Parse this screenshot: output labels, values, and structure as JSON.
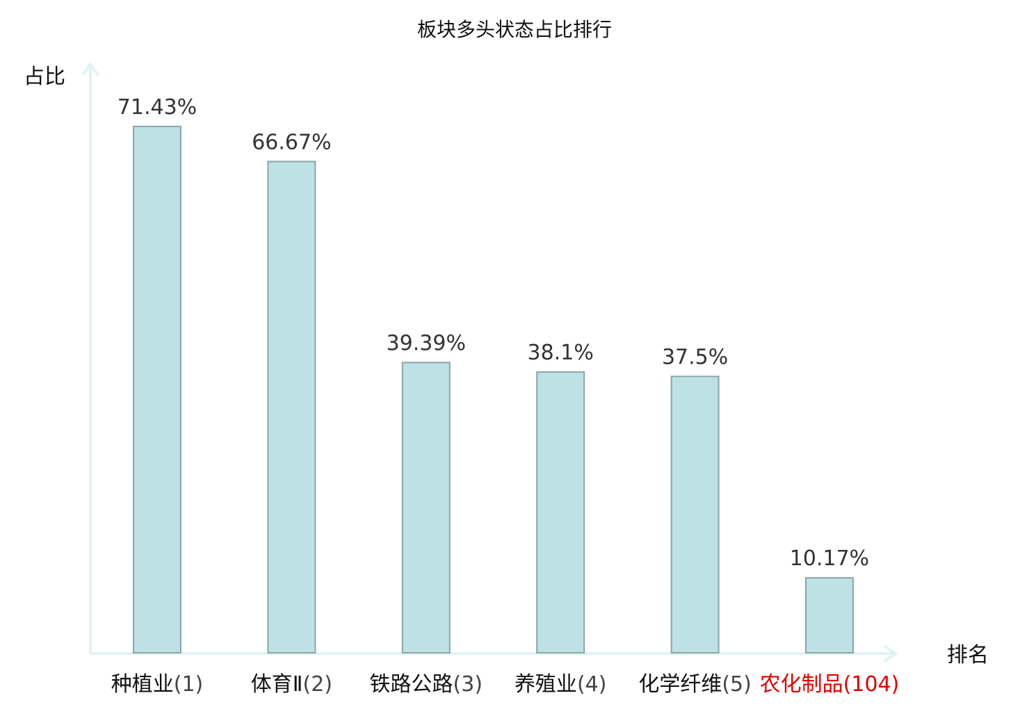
{
  "chart_data": {
    "type": "bar",
    "title": "板块多头状态占比排行",
    "ylabel": "占比",
    "xlabel": "排名",
    "ylim": [
      0,
      80
    ],
    "grid": false,
    "categories": [
      {
        "name": "种植业",
        "rank": "(1)",
        "highlight": false
      },
      {
        "name": "体育Ⅱ",
        "rank": "(2)",
        "highlight": false
      },
      {
        "name": "铁路公路",
        "rank": "(3)",
        "highlight": false
      },
      {
        "name": "养殖业",
        "rank": "(4)",
        "highlight": false
      },
      {
        "name": "化学纤维",
        "rank": "(5)",
        "highlight": false
      },
      {
        "name": "农化制品",
        "rank": "(104)",
        "highlight": true
      }
    ],
    "values": [
      71.43,
      66.67,
      39.39,
      38.1,
      37.5,
      10.17
    ],
    "value_labels": [
      "71.43%",
      "66.67%",
      "39.39%",
      "38.1%",
      "37.5%",
      "10.17%"
    ]
  },
  "colors": {
    "bar_fill": "#bde1e4",
    "bar_stroke": "#8aa5a8",
    "axis": "#e0f3f2",
    "label_normal": "#111111",
    "rank_normal": "#444444",
    "label_highlight": "#e00000"
  }
}
